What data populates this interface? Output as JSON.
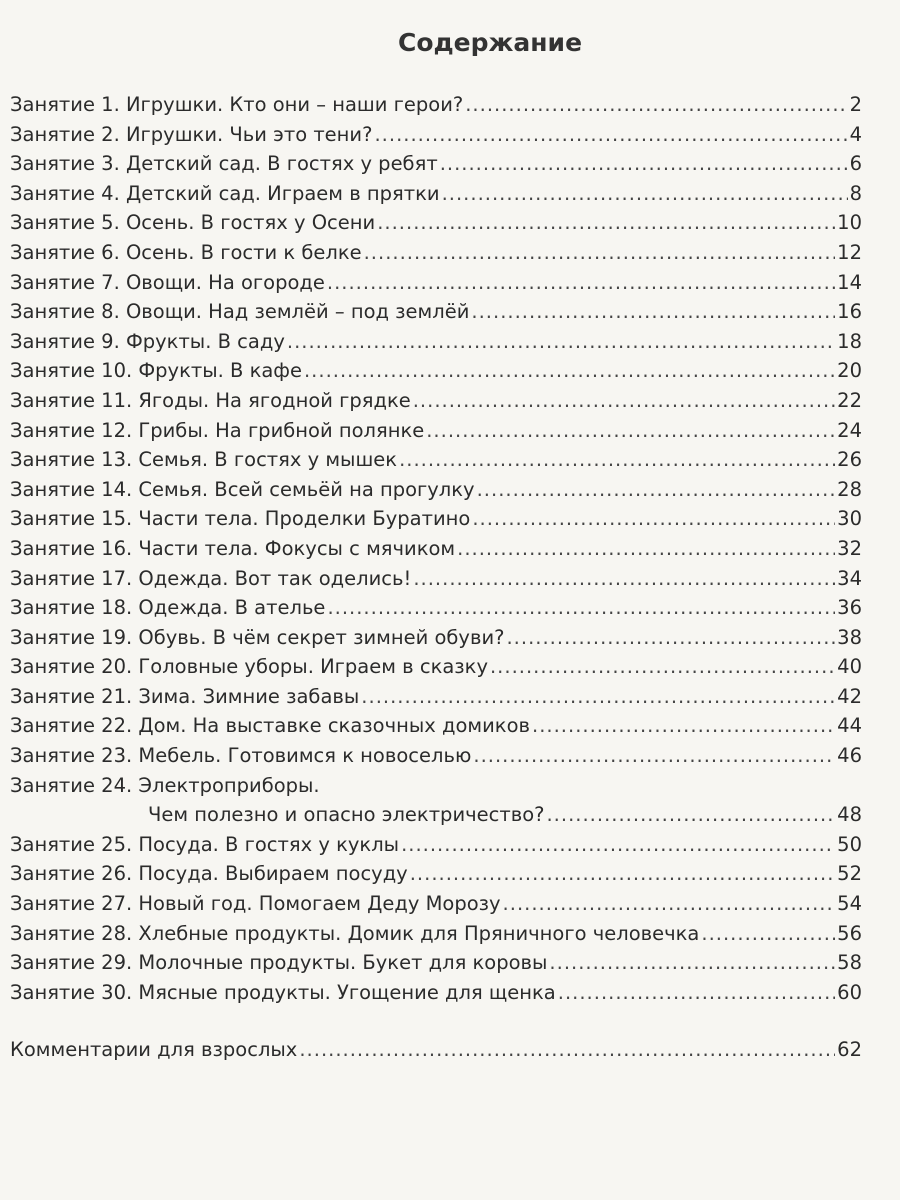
{
  "title": "Содержание",
  "entries": [
    {
      "label": "Занятие 1. Игрушки. Кто они – наши герои?",
      "page": "2"
    },
    {
      "label": "Занятие 2. Игрушки. Чьи это тени?",
      "page": "4"
    },
    {
      "label": "Занятие 3. Детский сад. В гостях у ребят",
      "page": "6"
    },
    {
      "label": "Занятие 4. Детский сад. Играем в прятки",
      "page": "8"
    },
    {
      "label": "Занятие 5. Осень. В гостях у Осени",
      "page": "10"
    },
    {
      "label": "Занятие 6. Осень. В гости к белке",
      "page": "12"
    },
    {
      "label": "Занятие 7. Овощи. На огороде",
      "page": "14"
    },
    {
      "label": "Занятие 8. Овощи. Над землёй – под землёй",
      "page": "16"
    },
    {
      "label": "Занятие 9. Фрукты. В саду",
      "page": "18"
    },
    {
      "label": "Занятие 10. Фрукты. В кафе",
      "page": "20"
    },
    {
      "label": "Занятие 11. Ягоды. На ягодной грядке",
      "page": "22"
    },
    {
      "label": "Занятие 12. Грибы. На грибной полянке",
      "page": "24"
    },
    {
      "label": "Занятие 13. Семья. В гостях у мышек",
      "page": "26"
    },
    {
      "label": "Занятие 14. Семья. Всей семьёй на прогулку",
      "page": "28"
    },
    {
      "label": "Занятие 15. Части тела. Проделки Буратино",
      "page": "30"
    },
    {
      "label": "Занятие 16. Части тела. Фокусы с мячиком",
      "page": "32"
    },
    {
      "label": "Занятие 17. Одежда. Вот так оделись!",
      "page": "34"
    },
    {
      "label": "Занятие 18. Одежда. В ателье",
      "page": "36"
    },
    {
      "label": "Занятие 19. Обувь. В чём секрет зимней обуви?",
      "page": "38"
    },
    {
      "label": "Занятие 20. Головные уборы. Играем в сказку",
      "page": "40"
    },
    {
      "label": "Занятие 21. Зима. Зимние забавы",
      "page": "42"
    },
    {
      "label": "Занятие 22. Дом. На выставке сказочных домиков",
      "page": "44"
    },
    {
      "label": "Занятие 23. Мебель. Готовимся к новоселью",
      "page": "46"
    },
    {
      "label": "Занятие 24. Электроприборы.",
      "continuation": "Чем полезно и опасно электричество?",
      "page": "48"
    },
    {
      "label": "Занятие 25. Посуда. В гостях у куклы",
      "page": "50"
    },
    {
      "label": "Занятие 26. Посуда. Выбираем посуду",
      "page": "52"
    },
    {
      "label": "Занятие 27. Новый год. Помогаем Деду Морозу",
      "page": "54"
    },
    {
      "label": "Занятие 28. Хлебные продукты. Домик для Пряничного человечка",
      "page": "56"
    },
    {
      "label": "Занятие 29. Молочные продукты. Букет для коровы",
      "page": "58"
    },
    {
      "label": "Занятие 30. Мясные продукты. Угощение для щенка",
      "page": "60"
    }
  ],
  "appendix": {
    "label": "Комментарии для взрослых",
    "page": "62"
  }
}
